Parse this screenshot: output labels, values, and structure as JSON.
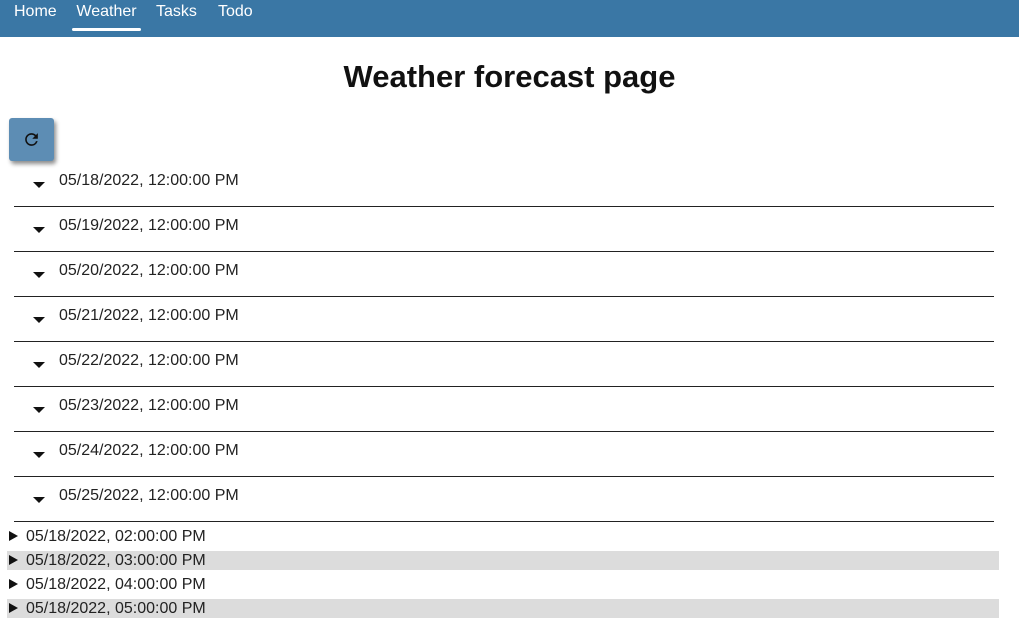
{
  "nav": {
    "items": [
      {
        "label": "Home",
        "active": false
      },
      {
        "label": "Weather",
        "active": true
      },
      {
        "label": "Tasks",
        "active": false
      },
      {
        "label": "Todo",
        "active": false
      }
    ],
    "bg_color": "#3a77a5"
  },
  "page": {
    "title": "Weather forecast page"
  },
  "refresh_button": {
    "icon": "refresh-icon",
    "color": "#5d8db4"
  },
  "days": [
    {
      "label": "05/18/2022, 12:00:00 PM",
      "expanded": true
    },
    {
      "label": "05/19/2022, 12:00:00 PM",
      "expanded": true
    },
    {
      "label": "05/20/2022, 12:00:00 PM",
      "expanded": true
    },
    {
      "label": "05/21/2022, 12:00:00 PM",
      "expanded": true
    },
    {
      "label": "05/22/2022, 12:00:00 PM",
      "expanded": true
    },
    {
      "label": "05/23/2022, 12:00:00 PM",
      "expanded": true
    },
    {
      "label": "05/24/2022, 12:00:00 PM",
      "expanded": true
    },
    {
      "label": "05/25/2022, 12:00:00 PM",
      "expanded": true
    }
  ],
  "hours": [
    {
      "label": "05/18/2022, 02:00:00 PM",
      "expanded": false
    },
    {
      "label": "05/18/2022, 03:00:00 PM",
      "expanded": false
    },
    {
      "label": "05/18/2022, 04:00:00 PM",
      "expanded": false
    },
    {
      "label": "05/18/2022, 05:00:00 PM",
      "expanded": false
    }
  ]
}
